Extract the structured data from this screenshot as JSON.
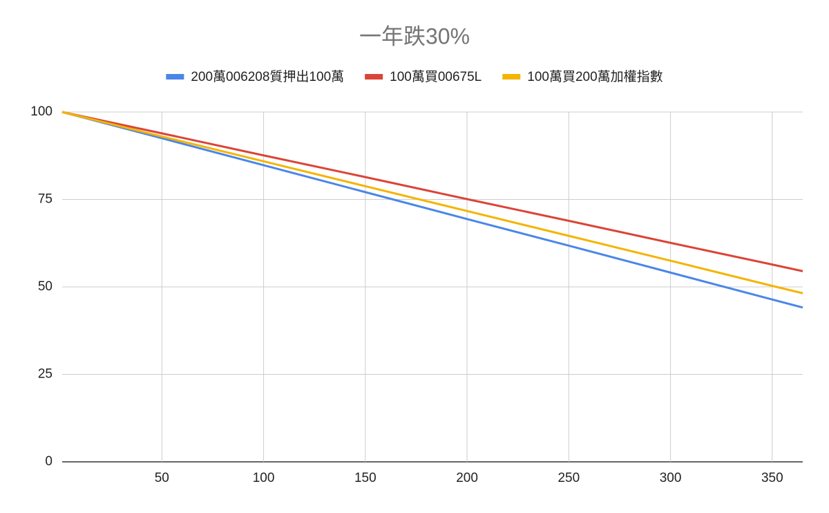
{
  "chart_data": {
    "type": "line",
    "title": "一年跌30%",
    "x": [
      1,
      50,
      100,
      150,
      200,
      250,
      300,
      350,
      365
    ],
    "series": [
      {
        "name": "200萬006208質押出100萬",
        "color": "#4a86e8",
        "values": [
          100,
          92.5,
          84.8,
          77.1,
          69.4,
          61.8,
          54.1,
          46.4,
          44.1
        ]
      },
      {
        "name": "100萬買00675L",
        "color": "#db4437",
        "values": [
          100,
          93.9,
          87.6,
          81.4,
          75.1,
          68.9,
          62.6,
          56.4,
          54.5
        ]
      },
      {
        "name": "100萬買200萬加權指數",
        "color": "#f4b400",
        "values": [
          100,
          93.0,
          85.9,
          78.8,
          71.7,
          64.6,
          57.5,
          50.3,
          48.2
        ]
      }
    ],
    "xlim": [
      1,
      365
    ],
    "xticks": [
      50,
      100,
      150,
      200,
      250,
      300,
      350
    ],
    "ylim": [
      0,
      100
    ],
    "yticks": [
      0,
      25,
      50,
      75,
      100
    ],
    "grid": true,
    "legend": "top"
  }
}
